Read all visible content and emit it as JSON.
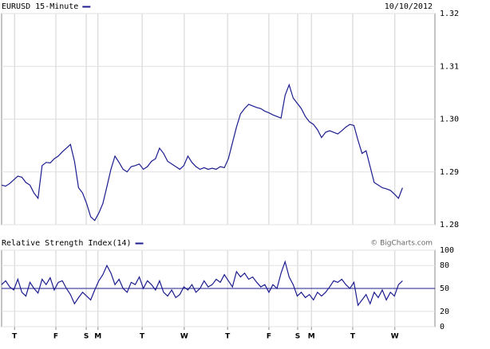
{
  "chart_data": [
    {
      "type": "line",
      "title": "EURUSD 15-Minute",
      "subtitle": "10/10/2012",
      "x": [
        0,
        1,
        2,
        3,
        4,
        5,
        6,
        7,
        8,
        9,
        10,
        11,
        12,
        13,
        14,
        15,
        16,
        17,
        18,
        19,
        20,
        21,
        22,
        23,
        24,
        25,
        26,
        27,
        28,
        29,
        30,
        31,
        32,
        33,
        34,
        35,
        36,
        37,
        38,
        39,
        40,
        41,
        42,
        43,
        44,
        45,
        46,
        47,
        48,
        49,
        50,
        51,
        52,
        53,
        54,
        55,
        56,
        57,
        58,
        59,
        60,
        61,
        62,
        63,
        64,
        65,
        66,
        67,
        68,
        69,
        70,
        71,
        72,
        73,
        74,
        75,
        76,
        77,
        78,
        79,
        80,
        81,
        82,
        83,
        84,
        85,
        86,
        87,
        88,
        89,
        90,
        91,
        92,
        93,
        94,
        95,
        96,
        97,
        98,
        99
      ],
      "series": [
        {
          "name": "EURUSD 15-Minute",
          "color": "#1c1c8f",
          "values": [
            1.2875,
            1.2873,
            1.2878,
            1.2885,
            1.2892,
            1.289,
            1.288,
            1.2875,
            1.286,
            1.285,
            1.2912,
            1.2918,
            1.2917,
            1.2925,
            1.293,
            1.2938,
            1.2945,
            1.2952,
            1.292,
            1.287,
            1.286,
            1.284,
            1.2815,
            1.2808,
            1.2822,
            1.284,
            1.2872,
            1.2905,
            1.293,
            1.2918,
            1.2905,
            1.29,
            1.291,
            1.2912,
            1.2915,
            1.2905,
            1.291,
            1.292,
            1.2925,
            1.2945,
            1.2935,
            1.292,
            1.2915,
            1.291,
            1.2905,
            1.2912,
            1.293,
            1.2918,
            1.291,
            1.2905,
            1.2908,
            1.2905,
            1.2907,
            1.2905,
            1.291,
            1.2908,
            1.2925,
            1.2955,
            1.2985,
            1.301,
            1.302,
            1.3028,
            1.3025,
            1.3022,
            1.302,
            1.3015,
            1.3012,
            1.3008,
            1.3005,
            1.3002,
            1.3045,
            1.3065,
            1.304,
            1.303,
            1.302,
            1.3005,
            1.2995,
            1.299,
            1.298,
            1.2965,
            1.2975,
            1.2978,
            1.2975,
            1.2972,
            1.2978,
            1.2985,
            1.299,
            1.2988,
            1.296,
            1.2935,
            1.294,
            1.291,
            1.288,
            1.2875,
            1.287,
            1.2868,
            1.2865,
            1.2858,
            1.285,
            1.287
          ]
        }
      ],
      "xlim": [
        0,
        107
      ],
      "ylim": [
        1.28,
        1.32
      ],
      "yticks": [
        1.28,
        1.29,
        {
          "value": 1.3,
          "label": "1.30"
        },
        1.31,
        1.32
      ],
      "grid": true
    },
    {
      "type": "line",
      "title": "Relative Strength Index(14)",
      "source": "© BigCharts.com",
      "x": [
        0,
        1,
        2,
        3,
        4,
        5,
        6,
        7,
        8,
        9,
        10,
        11,
        12,
        13,
        14,
        15,
        16,
        17,
        18,
        19,
        20,
        21,
        22,
        23,
        24,
        25,
        26,
        27,
        28,
        29,
        30,
        31,
        32,
        33,
        34,
        35,
        36,
        37,
        38,
        39,
        40,
        41,
        42,
        43,
        44,
        45,
        46,
        47,
        48,
        49,
        50,
        51,
        52,
        53,
        54,
        55,
        56,
        57,
        58,
        59,
        60,
        61,
        62,
        63,
        64,
        65,
        66,
        67,
        68,
        69,
        70,
        71,
        72,
        73,
        74,
        75,
        76,
        77,
        78,
        79,
        80,
        81,
        82,
        83,
        84,
        85,
        86,
        87,
        88,
        89,
        90,
        91,
        92,
        93,
        94,
        95,
        96,
        97,
        98,
        99
      ],
      "series": [
        {
          "name": "Relative Strength Index(14)",
          "color": "#1c1c8f",
          "values": [
            55,
            60,
            52,
            48,
            62,
            45,
            40,
            58,
            50,
            44,
            62,
            55,
            64,
            48,
            58,
            60,
            50,
            42,
            30,
            38,
            45,
            40,
            35,
            48,
            60,
            68,
            80,
            70,
            55,
            62,
            50,
            45,
            58,
            55,
            65,
            50,
            60,
            55,
            48,
            60,
            45,
            40,
            48,
            38,
            42,
            52,
            48,
            55,
            45,
            50,
            60,
            52,
            55,
            62,
            58,
            68,
            60,
            52,
            72,
            65,
            70,
            62,
            65,
            58,
            52,
            55,
            45,
            55,
            50,
            70,
            85,
            65,
            55,
            40,
            45,
            38,
            42,
            35,
            45,
            40,
            45,
            52,
            60,
            58,
            62,
            55,
            50,
            58,
            28,
            35,
            42,
            30,
            45,
            38,
            48,
            35,
            45,
            40,
            55,
            60
          ]
        }
      ],
      "xlim": [
        0,
        107
      ],
      "ylim": [
        0,
        100
      ],
      "yticks": [
        0,
        20,
        50,
        80,
        100
      ],
      "hline": 50,
      "grid": true,
      "xticks": [
        {
          "value": 3.2,
          "label": "T"
        },
        {
          "value": 13.4,
          "label": "F"
        },
        {
          "value": 20.9,
          "label": "S"
        },
        {
          "value": 23.8,
          "label": "M"
        },
        {
          "value": 34.7,
          "label": "T"
        },
        {
          "value": 45.1,
          "label": "W"
        },
        {
          "value": 55.8,
          "label": "T"
        },
        {
          "value": 66.0,
          "label": "F"
        },
        {
          "value": 73.1,
          "label": "S"
        },
        {
          "value": 76.5,
          "label": "M"
        },
        {
          "value": 86.7,
          "label": "T"
        },
        {
          "value": 97.1,
          "label": "W"
        }
      ]
    }
  ]
}
